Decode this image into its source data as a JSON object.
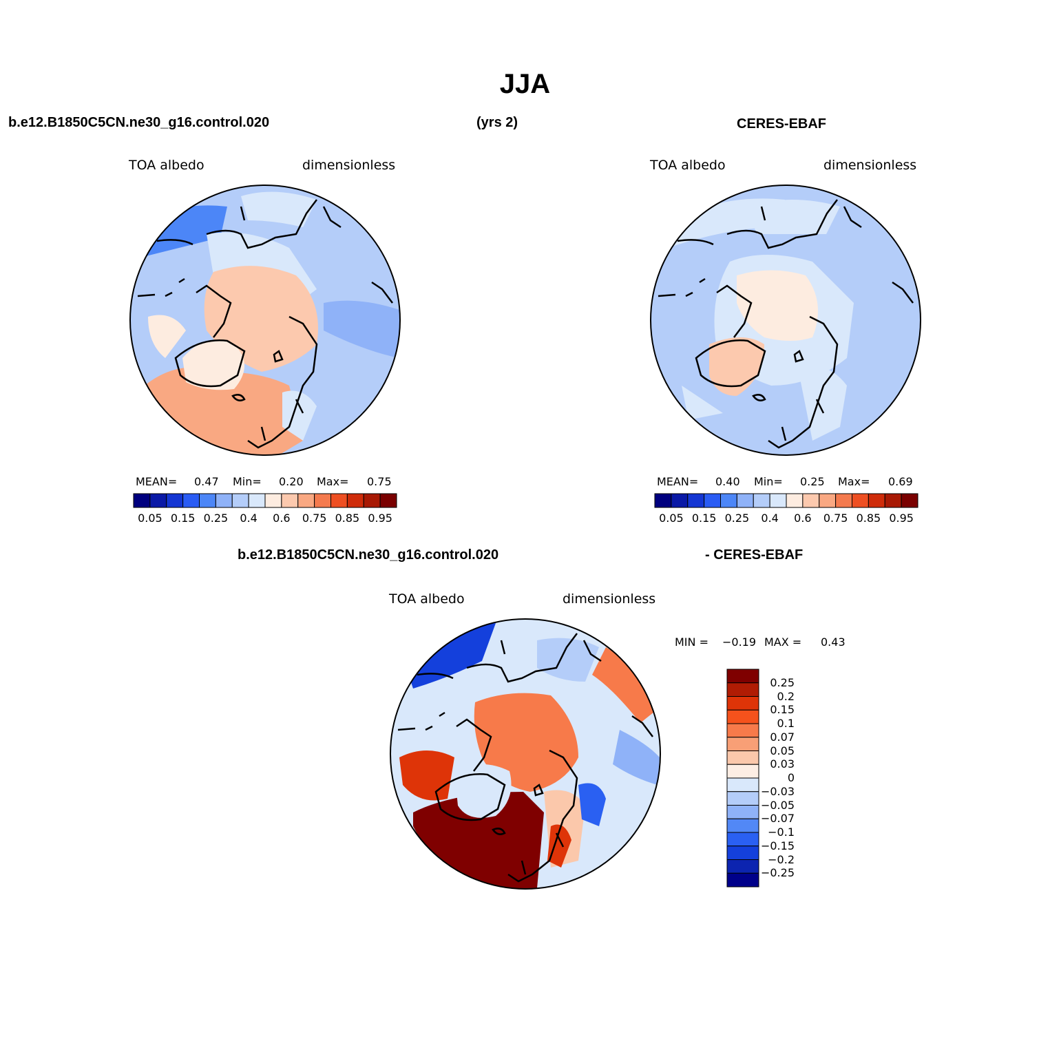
{
  "title": "JJA",
  "top": {
    "left_case": "b.e12.B1850C5CN.ne30_g16.control.020",
    "years": "(yrs 2)",
    "right_case": "CERES-EBAF"
  },
  "panels": [
    {
      "name": "model",
      "variable": "TOA  albedo",
      "units": "dimensionless",
      "mean_label": "MEAN=",
      "mean": "0.47",
      "min_label": "Min=",
      "min": "0.20",
      "max_label": "Max=",
      "max": "0.75"
    },
    {
      "name": "obs",
      "variable": "TOA  albedo",
      "units": "dimensionless",
      "mean_label": "MEAN=",
      "mean": "0.40",
      "min_label": "Min=",
      "min": "0.25",
      "max_label": "Max=",
      "max": "0.69"
    }
  ],
  "abs_colorbar": {
    "colors": [
      "#00007f",
      "#0a19a6",
      "#1436d3",
      "#2a5cf4",
      "#4c86f7",
      "#8fb2f8",
      "#b4cdf9",
      "#d9e8fb",
      "#fdece0",
      "#fcc9ae",
      "#f9a882",
      "#f47a4e",
      "#ee4f22",
      "#cf2c0a",
      "#a81904",
      "#7a0000"
    ],
    "labels": [
      "0.05",
      "0.15",
      "0.25",
      "0.4",
      "0.6",
      "0.75",
      "0.85",
      "0.95"
    ]
  },
  "diff": {
    "left_case": "b.e12.B1850C5CN.ne30_g16.control.020",
    "right_case": "- CERES-EBAF",
    "variable": "TOA  albedo",
    "units": "dimensionless",
    "min_label": "MIN =",
    "min": "-0.19",
    "max_label": "MAX =",
    "max": "0.43",
    "colorbar": {
      "colors": [
        "#7f0000",
        "#b01c04",
        "#de3408",
        "#f5521c",
        "#f77a4a",
        "#f89f76",
        "#fbc8ab",
        "#fdeee4",
        "#d9e8fb",
        "#b4cdf9",
        "#8fb2f8",
        "#5288f6",
        "#2a60f2",
        "#1440dc",
        "#0c24b0",
        "#00008a"
      ],
      "labels": [
        "0.25",
        "0.2",
        "0.15",
        "0.1",
        "0.07",
        "0.05",
        "0.03",
        "0",
        "-0.03",
        "-0.05",
        "-0.07",
        "-0.1",
        "-0.15",
        "-0.2",
        "-0.25"
      ]
    }
  },
  "field_palette": {
    "ocean": "#b4cdf9",
    "ocean_light": "#d9e8fb",
    "ocean_dark": "#8fb2f8",
    "ice_light": "#fdece0",
    "ice_mid": "#fcc9ae",
    "greenland_high": "#f9a882",
    "diff_hot": "#7f0000",
    "diff_warm": "#f5521c",
    "diff_cold": "#1440dc"
  }
}
